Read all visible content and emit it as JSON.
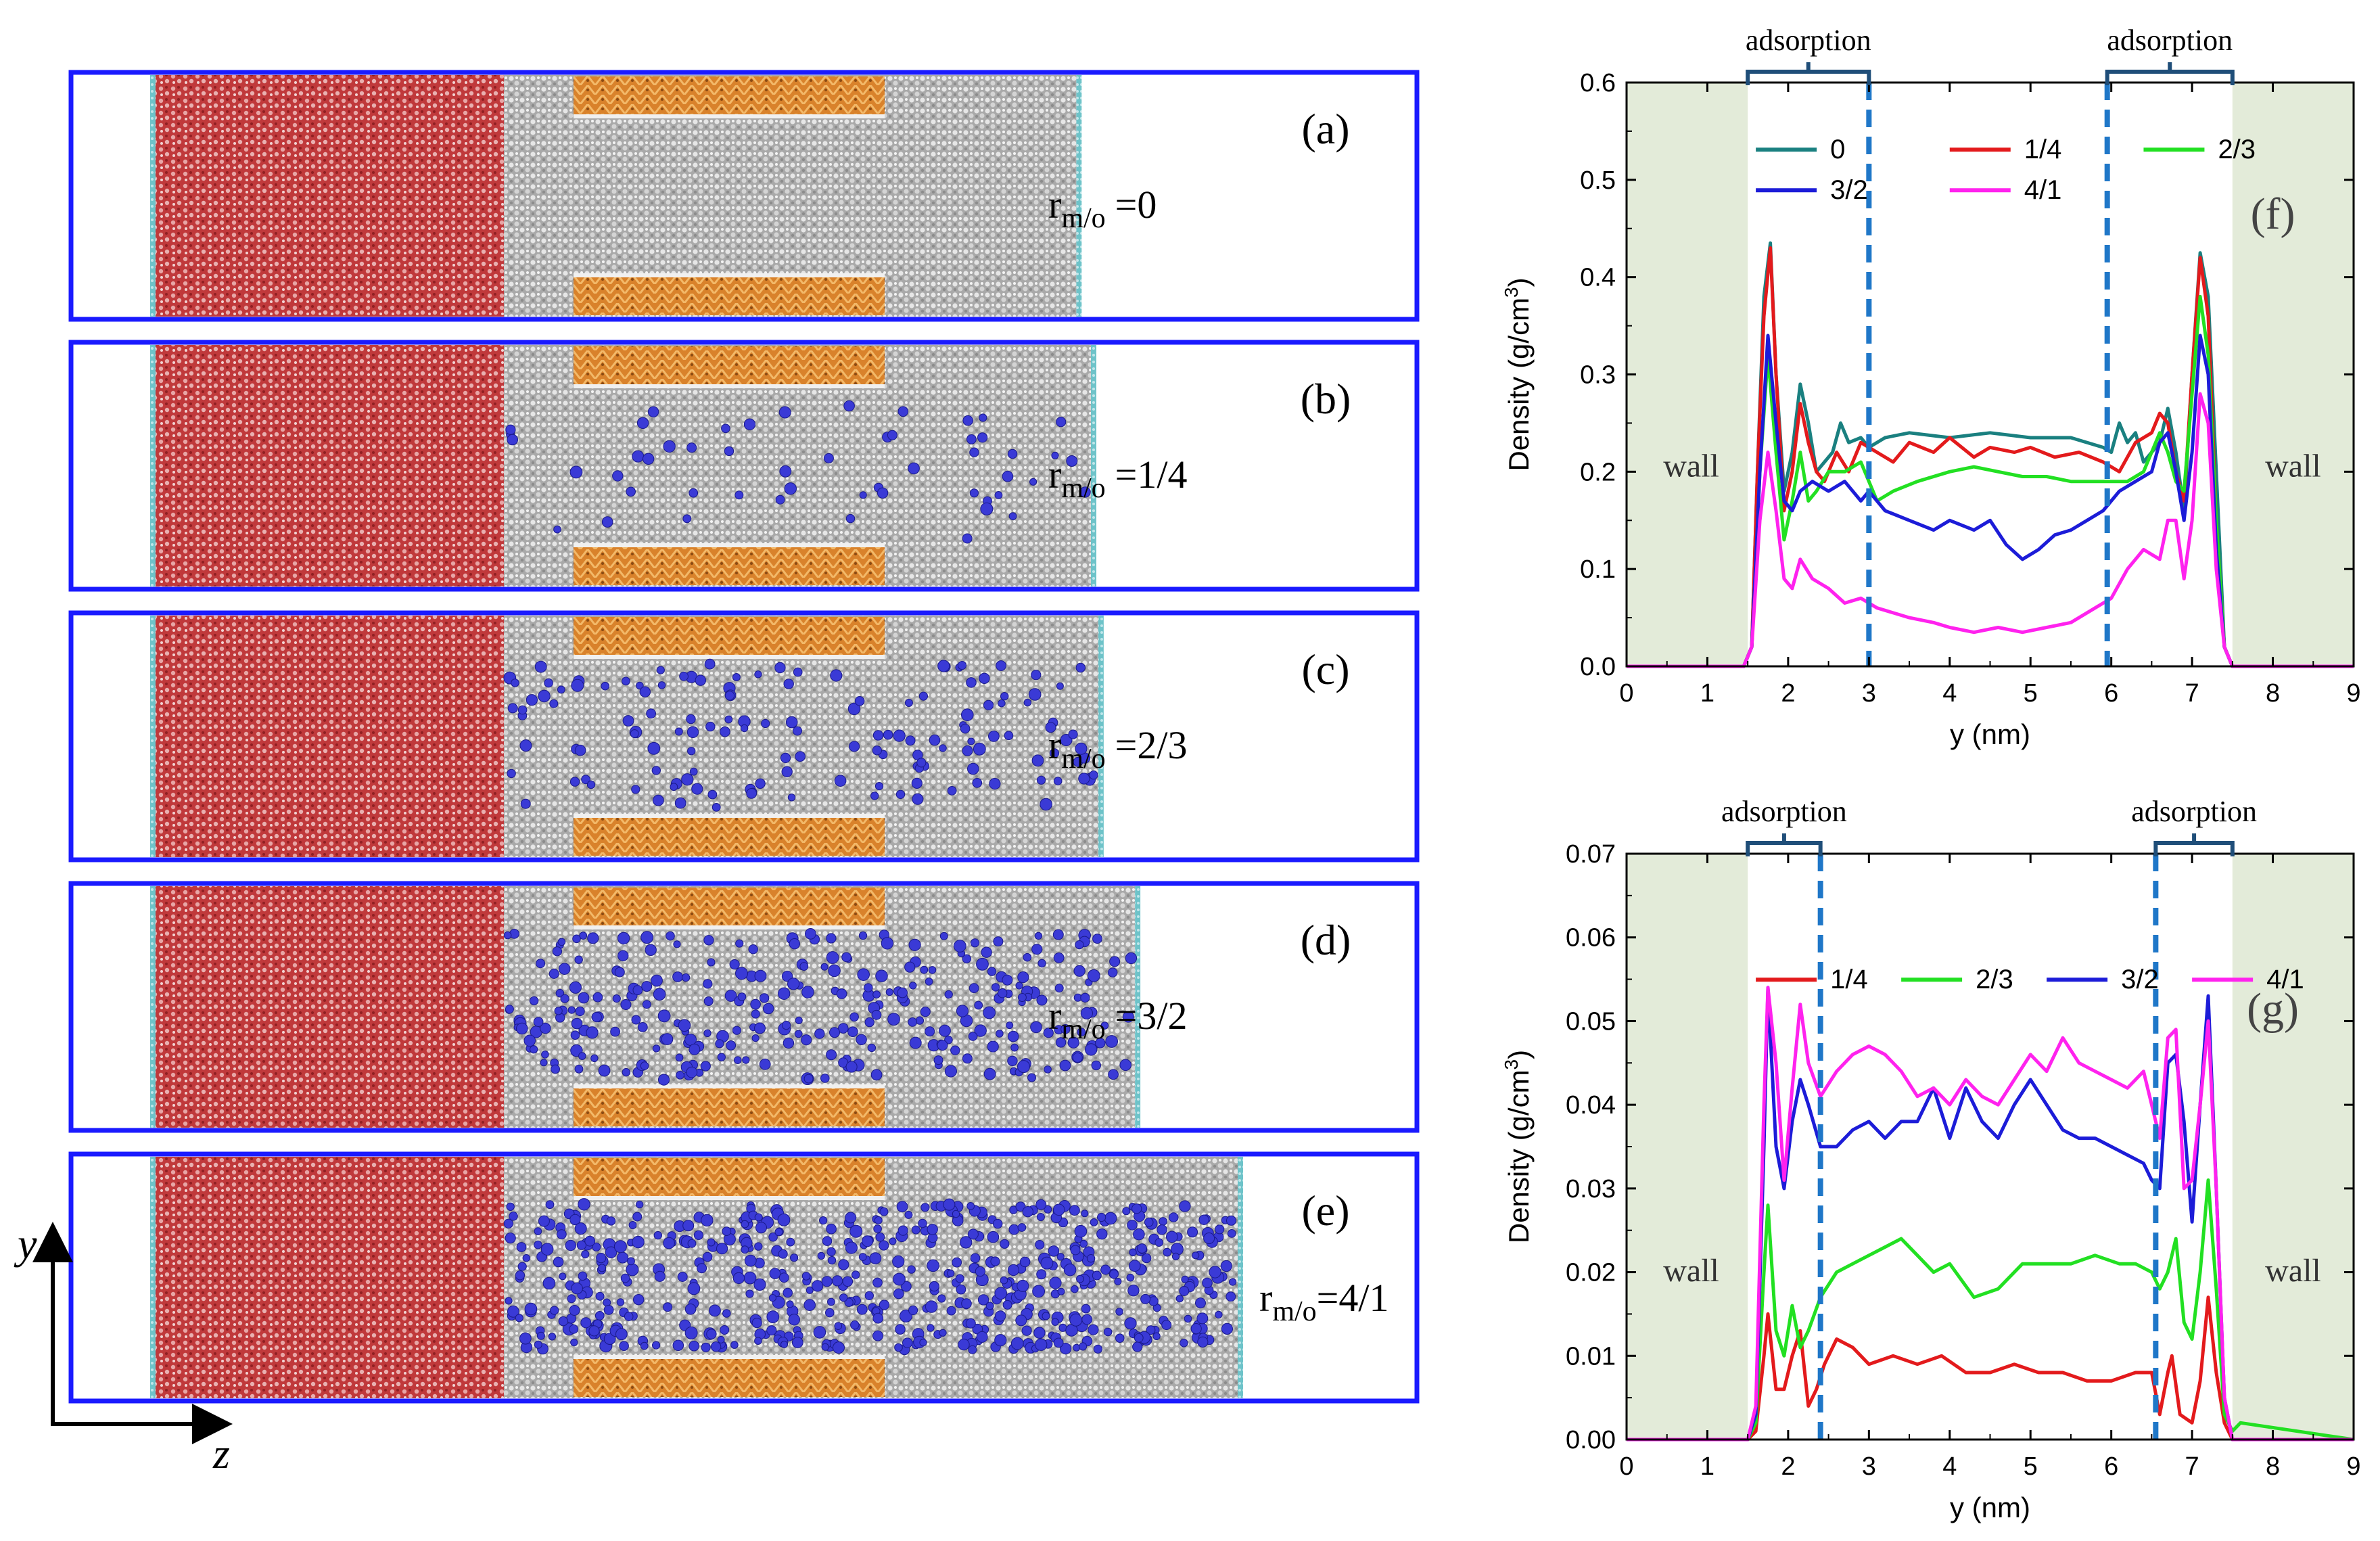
{
  "colors": {
    "panel_border": "#1a1aff",
    "water_red": "#c0393b",
    "water_light": "#e8a6a6",
    "oil_gray": "#a9a9a9",
    "oil_light": "#e6e6e6",
    "slab_orange": "#d9822b",
    "slab_light": "#f3b969",
    "molecule_blue": "#3a3ad6",
    "wall_edge": "#6ec3c9",
    "wall_fill": "#e3ebd9",
    "dash_blue": "#1f77c8",
    "bracket": "#1f4e79"
  },
  "panels": [
    {
      "label": "(a)",
      "ratio_sub": "m/o",
      "ratio_value": "=0",
      "molecule_density": 0,
      "oil_extent": 0.78
    },
    {
      "label": "(b)",
      "ratio_sub": "m/o",
      "ratio_value": "=1/4",
      "molecule_density": 0.08,
      "oil_extent": 0.8
    },
    {
      "label": "(c)",
      "ratio_sub": "m/o",
      "ratio_value": "=2/3",
      "molecule_density": 0.22,
      "oil_extent": 0.81
    },
    {
      "label": "(d)",
      "ratio_sub": "m/o",
      "ratio_value": "=3/2",
      "molecule_density": 0.45,
      "oil_extent": 0.86
    },
    {
      "label": "(e)",
      "ratio_sub": "m/o",
      "ratio_value": "=4/1",
      "molecule_density": 0.85,
      "oil_extent": 1.0
    }
  ],
  "axes_glyphs": {
    "y": "y",
    "z": "z"
  },
  "ratio_prefix": "r",
  "chart_data": [
    {
      "type": "line",
      "panel_label": "(f)",
      "title": "",
      "xlabel": "y (nm)",
      "ylabel_main": "Density (g/cm",
      "ylabel_sup": "3",
      "ylabel_end": ")",
      "xlim": [
        0,
        9
      ],
      "ylim": [
        0,
        0.6
      ],
      "xticks": [
        0,
        1,
        2,
        3,
        4,
        5,
        6,
        7,
        8,
        9
      ],
      "yticks": [
        0.0,
        0.1,
        0.2,
        0.3,
        0.4,
        0.5,
        0.6
      ],
      "ytick_labels": [
        "0.0",
        "0.1",
        "0.2",
        "0.3",
        "0.4",
        "0.5",
        "0.6"
      ],
      "wall_regions": [
        [
          0,
          1.5
        ],
        [
          7.5,
          9
        ]
      ],
      "wall_label": "wall",
      "dashed_lines": [
        3.0,
        5.95
      ],
      "adsorption_label": "adsorption",
      "adsorption_brackets": [
        [
          1.5,
          3.0
        ],
        [
          5.95,
          7.5
        ]
      ],
      "legend_columns": 3,
      "series": [
        {
          "name": "0",
          "color": "#1a8080",
          "x": [
            0,
            1.45,
            1.55,
            1.62,
            1.7,
            1.78,
            1.85,
            1.95,
            2.05,
            2.15,
            2.25,
            2.35,
            2.45,
            2.55,
            2.65,
            2.75,
            2.9,
            3.0,
            3.2,
            3.5,
            4.0,
            4.5,
            5.0,
            5.5,
            5.9,
            6.0,
            6.1,
            6.2,
            6.3,
            6.4,
            6.5,
            6.6,
            6.7,
            6.8,
            6.9,
            7.0,
            7.1,
            7.2,
            7.3,
            7.4,
            7.5,
            7.6,
            9
          ],
          "y": [
            0,
            0,
            0.02,
            0.2,
            0.38,
            0.435,
            0.3,
            0.18,
            0.22,
            0.29,
            0.25,
            0.2,
            0.21,
            0.22,
            0.25,
            0.23,
            0.235,
            0.225,
            0.235,
            0.24,
            0.235,
            0.24,
            0.235,
            0.235,
            0.225,
            0.22,
            0.25,
            0.23,
            0.24,
            0.21,
            0.22,
            0.23,
            0.265,
            0.22,
            0.16,
            0.3,
            0.425,
            0.38,
            0.2,
            0.02,
            0,
            0,
            0
          ]
        },
        {
          "name": "1/4",
          "color": "#e31a1c",
          "x": [
            0,
            1.45,
            1.55,
            1.62,
            1.7,
            1.78,
            1.85,
            1.95,
            2.05,
            2.15,
            2.25,
            2.35,
            2.45,
            2.6,
            2.75,
            2.9,
            3.1,
            3.3,
            3.5,
            3.8,
            4.0,
            4.3,
            4.5,
            4.8,
            5.0,
            5.3,
            5.6,
            5.9,
            6.1,
            6.3,
            6.5,
            6.6,
            6.7,
            6.8,
            6.9,
            7.0,
            7.1,
            7.2,
            7.3,
            7.4,
            7.5,
            9
          ],
          "y": [
            0,
            0,
            0.02,
            0.2,
            0.36,
            0.43,
            0.3,
            0.16,
            0.2,
            0.27,
            0.23,
            0.2,
            0.19,
            0.22,
            0.2,
            0.23,
            0.22,
            0.21,
            0.23,
            0.22,
            0.235,
            0.215,
            0.225,
            0.22,
            0.225,
            0.215,
            0.22,
            0.21,
            0.2,
            0.23,
            0.24,
            0.26,
            0.25,
            0.2,
            0.17,
            0.3,
            0.42,
            0.36,
            0.15,
            0.02,
            0,
            0
          ]
        },
        {
          "name": "2/3",
          "color": "#22e022",
          "x": [
            0,
            1.45,
            1.55,
            1.65,
            1.75,
            1.85,
            1.95,
            2.05,
            2.15,
            2.25,
            2.35,
            2.5,
            2.7,
            2.9,
            3.1,
            3.3,
            3.6,
            4.0,
            4.3,
            4.6,
            4.9,
            5.2,
            5.5,
            5.8,
            6.0,
            6.2,
            6.4,
            6.6,
            6.7,
            6.8,
            6.9,
            7.0,
            7.1,
            7.2,
            7.3,
            7.4,
            7.5,
            9
          ],
          "y": [
            0,
            0,
            0.02,
            0.2,
            0.32,
            0.22,
            0.13,
            0.17,
            0.22,
            0.17,
            0.18,
            0.2,
            0.2,
            0.21,
            0.17,
            0.18,
            0.19,
            0.2,
            0.205,
            0.2,
            0.195,
            0.195,
            0.19,
            0.19,
            0.19,
            0.19,
            0.2,
            0.24,
            0.22,
            0.19,
            0.18,
            0.28,
            0.38,
            0.32,
            0.15,
            0.02,
            0,
            0
          ]
        },
        {
          "name": "3/2",
          "color": "#1c1cd8",
          "x": [
            0,
            1.45,
            1.55,
            1.65,
            1.75,
            1.85,
            1.95,
            2.05,
            2.15,
            2.3,
            2.5,
            2.7,
            2.9,
            3.0,
            3.2,
            3.5,
            3.8,
            4.0,
            4.3,
            4.5,
            4.7,
            4.9,
            5.1,
            5.3,
            5.5,
            5.7,
            5.9,
            6.1,
            6.3,
            6.5,
            6.6,
            6.7,
            6.8,
            6.9,
            7.0,
            7.1,
            7.2,
            7.3,
            7.4,
            7.5,
            9
          ],
          "y": [
            0,
            0,
            0.02,
            0.2,
            0.34,
            0.25,
            0.17,
            0.16,
            0.18,
            0.19,
            0.18,
            0.19,
            0.17,
            0.18,
            0.16,
            0.15,
            0.14,
            0.15,
            0.14,
            0.15,
            0.125,
            0.11,
            0.12,
            0.135,
            0.14,
            0.15,
            0.16,
            0.18,
            0.19,
            0.2,
            0.23,
            0.24,
            0.2,
            0.15,
            0.22,
            0.34,
            0.3,
            0.12,
            0.02,
            0,
            0
          ]
        },
        {
          "name": "4/1",
          "color": "#ff22ee",
          "x": [
            0,
            1.45,
            1.55,
            1.65,
            1.75,
            1.85,
            1.95,
            2.05,
            2.15,
            2.3,
            2.5,
            2.7,
            2.9,
            3.1,
            3.3,
            3.5,
            3.8,
            4.0,
            4.3,
            4.6,
            4.9,
            5.2,
            5.5,
            5.8,
            6.0,
            6.2,
            6.4,
            6.6,
            6.7,
            6.8,
            6.9,
            7.0,
            7.1,
            7.2,
            7.3,
            7.4,
            7.5,
            9
          ],
          "y": [
            0,
            0,
            0.02,
            0.15,
            0.22,
            0.16,
            0.09,
            0.08,
            0.11,
            0.09,
            0.08,
            0.065,
            0.07,
            0.06,
            0.055,
            0.05,
            0.045,
            0.04,
            0.035,
            0.04,
            0.035,
            0.04,
            0.045,
            0.06,
            0.07,
            0.1,
            0.12,
            0.11,
            0.15,
            0.15,
            0.09,
            0.15,
            0.28,
            0.25,
            0.1,
            0.02,
            0,
            0
          ]
        }
      ]
    },
    {
      "type": "line",
      "panel_label": "(g)",
      "title": "",
      "xlabel": "y (nm)",
      "ylabel_main": "Density (g/cm",
      "ylabel_sup": "3",
      "ylabel_end": ")",
      "xlim": [
        0,
        9
      ],
      "ylim": [
        0,
        0.07
      ],
      "xticks": [
        0,
        1,
        2,
        3,
        4,
        5,
        6,
        7,
        8,
        9
      ],
      "yticks": [
        0.0,
        0.01,
        0.02,
        0.03,
        0.04,
        0.05,
        0.06,
        0.07
      ],
      "ytick_labels": [
        "0.00",
        "0.01",
        "0.02",
        "0.03",
        "0.04",
        "0.05",
        "0.06",
        "0.07"
      ],
      "wall_regions": [
        [
          0,
          1.5
        ],
        [
          7.5,
          9
        ]
      ],
      "wall_label": "wall",
      "dashed_lines": [
        2.4,
        6.55
      ],
      "adsorption_label": "adsorption",
      "adsorption_brackets": [
        [
          1.5,
          2.4
        ],
        [
          6.55,
          7.5
        ]
      ],
      "legend_columns": 4,
      "series": [
        {
          "name": "1/4",
          "color": "#e31a1c",
          "x": [
            0,
            1.5,
            1.6,
            1.7,
            1.75,
            1.85,
            1.95,
            2.05,
            2.15,
            2.25,
            2.35,
            2.45,
            2.6,
            2.8,
            3.0,
            3.3,
            3.6,
            3.9,
            4.2,
            4.5,
            4.8,
            5.1,
            5.4,
            5.7,
            6.0,
            6.3,
            6.5,
            6.6,
            6.7,
            6.75,
            6.85,
            7.0,
            7.1,
            7.2,
            7.3,
            7.4,
            7.5,
            9
          ],
          "y": [
            0,
            0,
            0.001,
            0.01,
            0.015,
            0.006,
            0.006,
            0.01,
            0.013,
            0.004,
            0.006,
            0.009,
            0.012,
            0.011,
            0.009,
            0.01,
            0.009,
            0.01,
            0.008,
            0.008,
            0.009,
            0.008,
            0.008,
            0.007,
            0.007,
            0.008,
            0.008,
            0.003,
            0.008,
            0.01,
            0.003,
            0.002,
            0.007,
            0.017,
            0.008,
            0.002,
            0,
            0
          ]
        },
        {
          "name": "2/3",
          "color": "#22e022",
          "x": [
            0,
            1.5,
            1.6,
            1.7,
            1.75,
            1.85,
            1.95,
            2.05,
            2.15,
            2.25,
            2.4,
            2.6,
            2.8,
            3.0,
            3.2,
            3.4,
            3.6,
            3.8,
            4.0,
            4.3,
            4.6,
            4.9,
            5.2,
            5.5,
            5.8,
            6.1,
            6.3,
            6.5,
            6.6,
            6.7,
            6.8,
            6.9,
            7.0,
            7.1,
            7.2,
            7.3,
            7.4,
            7.5,
            7.6,
            9
          ],
          "y": [
            0,
            0,
            0.002,
            0.02,
            0.028,
            0.013,
            0.01,
            0.016,
            0.011,
            0.013,
            0.017,
            0.02,
            0.021,
            0.022,
            0.023,
            0.024,
            0.022,
            0.02,
            0.021,
            0.017,
            0.018,
            0.021,
            0.021,
            0.021,
            0.022,
            0.021,
            0.021,
            0.02,
            0.018,
            0.02,
            0.024,
            0.014,
            0.012,
            0.02,
            0.031,
            0.018,
            0.003,
            0.001,
            0.002,
            0
          ]
        },
        {
          "name": "3/2",
          "color": "#1c1cd8",
          "x": [
            0,
            1.5,
            1.6,
            1.7,
            1.75,
            1.85,
            1.95,
            2.05,
            2.15,
            2.25,
            2.4,
            2.6,
            2.8,
            3.0,
            3.2,
            3.4,
            3.6,
            3.8,
            4.0,
            4.2,
            4.4,
            4.6,
            4.8,
            5.0,
            5.2,
            5.4,
            5.6,
            5.8,
            6.0,
            6.2,
            6.4,
            6.5,
            6.6,
            6.7,
            6.8,
            6.9,
            7.0,
            7.1,
            7.2,
            7.3,
            7.4,
            7.5,
            9
          ],
          "y": [
            0,
            0,
            0.003,
            0.035,
            0.054,
            0.035,
            0.03,
            0.038,
            0.043,
            0.04,
            0.035,
            0.035,
            0.037,
            0.038,
            0.036,
            0.038,
            0.038,
            0.042,
            0.036,
            0.042,
            0.038,
            0.036,
            0.04,
            0.043,
            0.04,
            0.037,
            0.036,
            0.036,
            0.035,
            0.034,
            0.033,
            0.031,
            0.03,
            0.045,
            0.046,
            0.038,
            0.026,
            0.04,
            0.053,
            0.03,
            0.005,
            0,
            0
          ]
        },
        {
          "name": "4/1",
          "color": "#ff22ee",
          "x": [
            0,
            1.5,
            1.6,
            1.7,
            1.75,
            1.85,
            1.95,
            2.05,
            2.15,
            2.25,
            2.4,
            2.6,
            2.8,
            3.0,
            3.2,
            3.4,
            3.6,
            3.8,
            4.0,
            4.2,
            4.4,
            4.6,
            4.8,
            5.0,
            5.2,
            5.4,
            5.6,
            5.8,
            6.0,
            6.2,
            6.4,
            6.5,
            6.6,
            6.7,
            6.8,
            6.9,
            7.0,
            7.1,
            7.2,
            7.3,
            7.4,
            7.5,
            9
          ],
          "y": [
            0,
            0,
            0.004,
            0.04,
            0.054,
            0.045,
            0.031,
            0.042,
            0.052,
            0.045,
            0.041,
            0.044,
            0.046,
            0.047,
            0.046,
            0.044,
            0.041,
            0.042,
            0.04,
            0.043,
            0.041,
            0.04,
            0.043,
            0.046,
            0.044,
            0.048,
            0.045,
            0.044,
            0.043,
            0.042,
            0.044,
            0.04,
            0.036,
            0.048,
            0.049,
            0.03,
            0.031,
            0.04,
            0.05,
            0.03,
            0.005,
            0,
            0
          ]
        }
      ]
    }
  ]
}
